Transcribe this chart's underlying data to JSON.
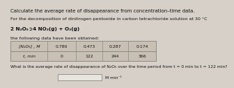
{
  "title_line1": "Calculate the average rate of disappearance from concentration–time data.",
  "intro_line": "For the decomposition of dinitrogen pentoxide in carbon tetrachloride solution at 30 °C",
  "equation": "2 N₂O₅➲4 NO₂(g) + O₂(g)",
  "data_intro": "the following data have been obtained:",
  "col_header1": "[N₂O₅] , M",
  "col_header2": "t, min",
  "concentrations": [
    "0.780",
    "0.473",
    "0.287",
    "0.174"
  ],
  "times": [
    "0",
    "122",
    "244",
    "366"
  ],
  "question": "What is the average rate of disappearance of N₂O₅ over the time period from t = 0 min to t = 122 min?",
  "unit_label": "M min⁻¹",
  "bg_color": "#d6d0c8",
  "text_color": "#111111",
  "table_bg_header": "#c8c0b4",
  "table_bg_data": "#c8c0b4",
  "table_border": "#888880",
  "input_box_color": "#e8e4de"
}
